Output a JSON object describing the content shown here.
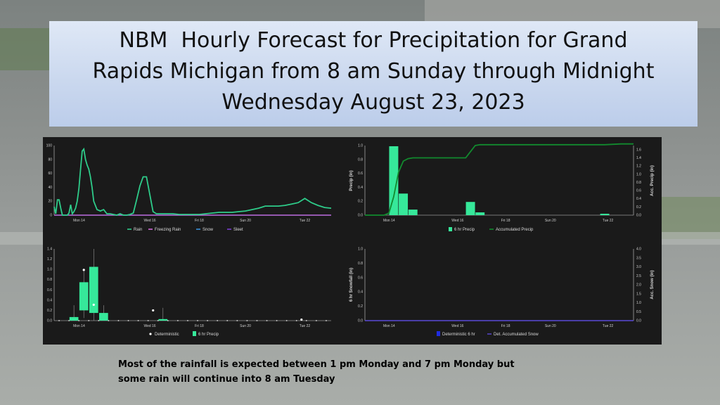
{
  "title": {
    "line1": "NBM  Hourly Forecast for Precipitation for Grand",
    "line2": "Rapids Michigan from 8 am Sunday through Midnight",
    "line3": "Wednesday August 23, 2023"
  },
  "caption": {
    "line1": "Most of the rainfall is expected between 1 pm Monday and 7 pm Monday but",
    "line2": "some rain will continue into 8 am Tuesday"
  },
  "colors": {
    "rain": "#2ecc8a",
    "freezing_rain": "#d06ad8",
    "snow": "#3a8fd8",
    "sleet": "#7a3fd0",
    "precip_bar": "#36e89a",
    "accum_line": "#128a2e",
    "deterministic_snow": "#1f2ce0"
  },
  "chart_data": [
    {
      "type": "line",
      "x_tick_labels": [
        "Mon 14",
        "Wed 16",
        "Fri 18",
        "Sun 20",
        "Tue 22"
      ],
      "y_tick_labels": [
        "0",
        "20",
        "40",
        "60",
        "80",
        "100"
      ],
      "ylim": [
        0,
        100
      ],
      "xlim": [
        0,
        168
      ],
      "legend": [
        "Rain",
        "Freezing Rain",
        "Snow",
        "Sleet"
      ],
      "series": [
        {
          "name": "Rain",
          "x": [
            0,
            1,
            2,
            3,
            4,
            5,
            6,
            7,
            8,
            9,
            10,
            11,
            12,
            13,
            14,
            15,
            16,
            17,
            18,
            19,
            20,
            21,
            22,
            23,
            24,
            26,
            28,
            30,
            32,
            34,
            36,
            38,
            40,
            42,
            44,
            46,
            48,
            50,
            52,
            54,
            56,
            58,
            60,
            62,
            64,
            66,
            68,
            70,
            72,
            76,
            80,
            84,
            88,
            92,
            96,
            100,
            104,
            108,
            112,
            116,
            120,
            124,
            128,
            132,
            136,
            140,
            144,
            148,
            152,
            156,
            160,
            164,
            168
          ],
          "y": [
            12,
            2,
            22,
            22,
            10,
            0,
            0,
            0,
            0,
            3,
            15,
            2,
            5,
            10,
            20,
            38,
            65,
            92,
            95,
            80,
            72,
            66,
            55,
            40,
            20,
            8,
            6,
            8,
            2,
            2,
            1,
            0,
            2,
            0,
            0,
            1,
            3,
            22,
            42,
            55,
            55,
            30,
            5,
            2,
            2,
            2,
            2,
            2,
            2,
            1,
            1,
            1,
            1,
            2,
            3,
            4,
            4,
            4,
            5,
            6,
            8,
            10,
            13,
            13,
            13,
            14,
            16,
            18,
            24,
            18,
            14,
            11,
            10
          ]
        },
        {
          "name": "Freezing Rain",
          "x": [
            0,
            168
          ],
          "y": [
            0,
            0
          ]
        },
        {
          "name": "Snow",
          "x": [
            0,
            168
          ],
          "y": [
            0,
            0
          ]
        },
        {
          "name": "Sleet",
          "x": [
            0,
            168
          ],
          "y": [
            0,
            0
          ]
        }
      ]
    },
    {
      "type": "bar",
      "x_tick_labels": [
        "Mon 14",
        "Wed 16",
        "Fri 18",
        "Sun 20",
        "Tue 22"
      ],
      "ylabel": "Precip (in)",
      "y2label": "Acc. Precip (in)",
      "y_tick_labels": [
        "0.0",
        "0.2",
        "0.4",
        "0.6",
        "0.8",
        "1.0"
      ],
      "y2_tick_labels": [
        "0.0",
        "0.2",
        "0.4",
        "0.6",
        "0.8",
        "1.0",
        "1.2",
        "1.4",
        "1.6"
      ],
      "ylim": [
        0,
        1.0
      ],
      "y2lim": [
        0,
        1.7
      ],
      "legend": [
        "6 hr Precip",
        "Accumulated Precip"
      ],
      "series": [
        {
          "name": "6 hr Precip",
          "x": [
            18,
            24,
            30,
            66,
            72,
            150
          ],
          "values": [
            0.99,
            0.31,
            0.08,
            0.19,
            0.04,
            0.02
          ]
        },
        {
          "name": "Accumulated Precip",
          "x": [
            0,
            12,
            15,
            18,
            21,
            24,
            27,
            30,
            40,
            63,
            66,
            69,
            72,
            80,
            120,
            150,
            160,
            168
          ],
          "values": [
            0,
            0,
            0.05,
            0.45,
            1.05,
            1.32,
            1.38,
            1.4,
            1.4,
            1.4,
            1.55,
            1.7,
            1.72,
            1.72,
            1.72,
            1.72,
            1.74,
            1.74
          ]
        }
      ]
    },
    {
      "type": "box",
      "x_tick_labels": [
        "Mon 14",
        "Wed 16",
        "Fri 18",
        "Sun 20",
        "Tue 22"
      ],
      "y_tick_labels": [
        "0.0",
        "0.2",
        "0.4",
        "0.6",
        "0.8",
        "1.0",
        "1.2",
        "1.4"
      ],
      "ylim": [
        0,
        1.4
      ],
      "legend": [
        "Deterministic",
        "6 hr Precip"
      ],
      "boxes": [
        {
          "x": 12,
          "q1": 0.0,
          "q3": 0.07,
          "min": 0.0,
          "max": 0.3
        },
        {
          "x": 18,
          "q1": 0.2,
          "q3": 0.75,
          "min": 0.05,
          "max": 1.0
        },
        {
          "x": 24,
          "q1": 0.15,
          "q3": 1.05,
          "min": 0.0,
          "max": 1.4
        },
        {
          "x": 30,
          "q1": 0.0,
          "q3": 0.15,
          "min": 0.0,
          "max": 0.3
        },
        {
          "x": 66,
          "q1": 0.0,
          "q3": 0.03,
          "min": 0.0,
          "max": 0.25
        }
      ],
      "deterministic": [
        {
          "x": 18,
          "y": 0.99
        },
        {
          "x": 24,
          "y": 0.31
        },
        {
          "x": 60,
          "y": 0.2
        },
        {
          "x": 150,
          "y": 0.02
        }
      ]
    },
    {
      "type": "line",
      "x_tick_labels": [
        "Mon 14",
        "Wed 16",
        "Fri 18",
        "Sun 20",
        "Tue 22"
      ],
      "ylabel": "6 hr Snowfall (in)",
      "y2label": "Acc. Snow (in)",
      "y_tick_labels": [
        "0.0",
        "0.2",
        "0.4",
        "0.6",
        "0.8",
        "1.0"
      ],
      "y2_tick_labels": [
        "0.0",
        "0.5",
        "1.0",
        "1.5",
        "2.0",
        "2.5",
        "3.0",
        "3.5",
        "4.0"
      ],
      "ylim": [
        0,
        1.0
      ],
      "y2lim": [
        0,
        4.0
      ],
      "legend": [
        "Deterministic 6 hr",
        "Det. Accumulated Snow"
      ],
      "series": [
        {
          "name": "Deterministic 6 hr",
          "x": [
            0,
            168
          ],
          "values": [
            0,
            0
          ]
        },
        {
          "name": "Det. Accumulated Snow",
          "x": [
            0,
            168
          ],
          "values": [
            0,
            0
          ]
        }
      ]
    }
  ]
}
